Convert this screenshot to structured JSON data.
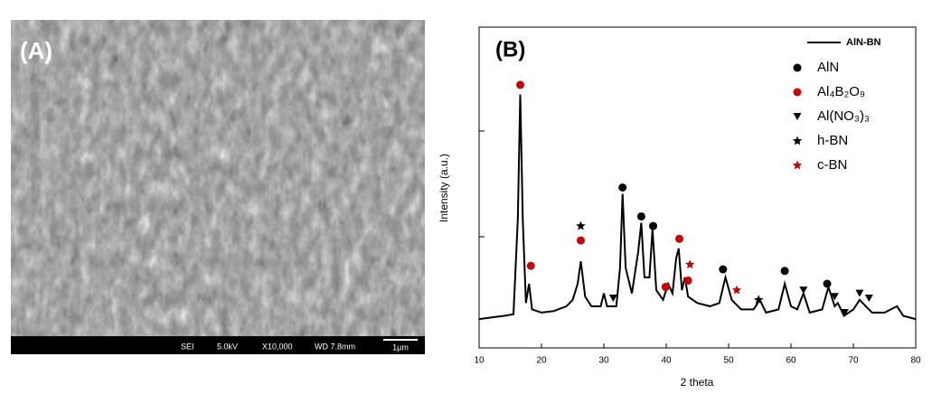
{
  "panel_a": {
    "label": "(A)",
    "info_bar": [
      "SEI",
      "5.0kV",
      "X10,000",
      "WD 7.8mm"
    ],
    "scale_bar": "1μm"
  },
  "chart_data": {
    "type": "line",
    "panel_label": "(B)",
    "x_label": "2 theta",
    "y_label": "Intensity (a.u.)",
    "xlim": [
      10,
      80
    ],
    "xticks": [
      10,
      20,
      30,
      40,
      50,
      60,
      70,
      80
    ],
    "ylim": [
      0,
      100
    ],
    "series": [
      {
        "name": "AlN-BN",
        "color": "#000000",
        "x": [
          10,
          12,
          14,
          15.5,
          16.2,
          16.6,
          17,
          17.5,
          18,
          18.5,
          20,
          22,
          24,
          25,
          25.8,
          26.3,
          27,
          28,
          29.5,
          30,
          30.5,
          32,
          32.6,
          33,
          33.5,
          34.5,
          35.5,
          36,
          36.5,
          37.3,
          37.8,
          38.4,
          39.5,
          40.3,
          41,
          41.6,
          42,
          42.5,
          43,
          43.5,
          45,
          47,
          48.5,
          49.5,
          50.5,
          52,
          54,
          55,
          56,
          58,
          59,
          60,
          61,
          62,
          63,
          65,
          66,
          67,
          67.5,
          68.5,
          70,
          71,
          72,
          73,
          75,
          77,
          78,
          80
        ],
        "values": [
          9,
          9.5,
          10,
          10.5,
          40,
          79,
          40,
          14,
          20,
          12,
          11,
          11.5,
          13,
          15,
          20,
          27,
          16,
          13,
          13,
          17,
          13,
          13,
          25,
          48,
          25,
          17,
          30,
          39,
          22,
          22,
          37,
          18,
          15,
          20,
          17,
          28,
          31,
          18,
          22,
          16,
          14,
          13,
          14,
          22,
          15,
          12,
          12,
          15,
          11,
          12,
          20,
          13,
          12,
          17,
          11,
          12,
          19,
          13,
          14,
          10,
          12,
          15,
          13,
          11,
          11,
          13,
          10,
          9
        ]
      },
      {
        "name": "AlN",
        "color": "#000000",
        "marker": "circle",
        "x": [
          33,
          36,
          37.9,
          49.1,
          59,
          65.8
        ],
        "values": [
          50,
          41,
          38,
          24.5,
          24,
          20
        ]
      },
      {
        "name": "Al₄B₂O₉",
        "color": "#cc0000",
        "marker": "circle",
        "x": [
          16.6,
          18.3,
          26.3,
          39.9,
          42.1,
          43.5
        ],
        "values": [
          82,
          25.6,
          33.5,
          19,
          34,
          21
        ]
      },
      {
        "name": "Al(NO₃)₃",
        "color": "#000000",
        "marker": "triangle",
        "x": [
          31.5,
          62,
          67,
          68.6,
          71,
          72.5
        ],
        "values": [
          15.5,
          18,
          16,
          11,
          17,
          15.5
        ]
      },
      {
        "name": "h-BN",
        "color": "#000000",
        "marker": "star",
        "x": [
          26.3,
          54.8
        ],
        "values": [
          38,
          15
        ]
      },
      {
        "name": "c-BN",
        "color": "#cc0000",
        "marker": "star",
        "x": [
          43.8,
          51.3
        ],
        "values": [
          26,
          18
        ]
      }
    ]
  }
}
